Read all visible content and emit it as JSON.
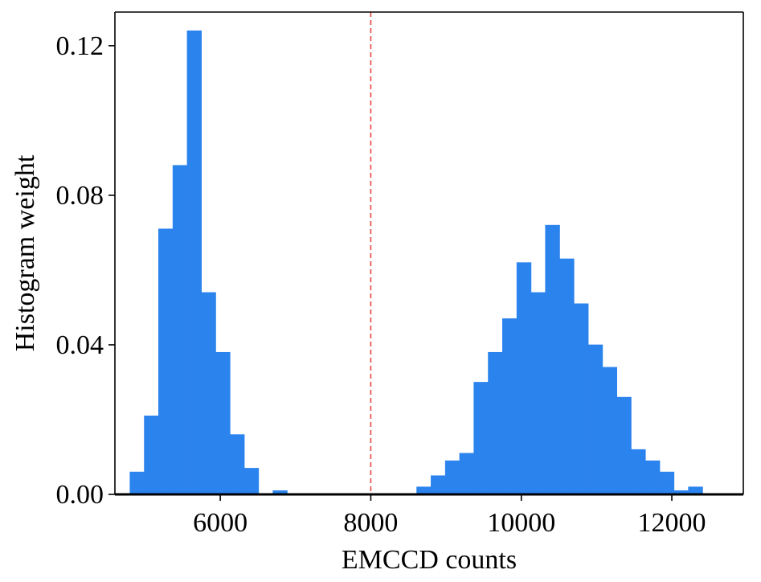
{
  "chart_data": {
    "type": "bar",
    "xlabel": "EMCCD counts",
    "ylabel": "Histogram weight",
    "xlim": [
      4600,
      12950
    ],
    "ylim": [
      0.0,
      0.129
    ],
    "xticks": [
      6000,
      8000,
      10000,
      12000
    ],
    "xtick_labels": [
      "6000",
      "8000",
      "10000",
      "12000"
    ],
    "yticks": [
      0.0,
      0.04,
      0.08,
      0.12
    ],
    "ytick_labels": [
      "0.00",
      "0.04",
      "0.08",
      "0.12"
    ],
    "bin_width": 190,
    "bins": [
      {
        "x0": 4800,
        "weight": 0.006
      },
      {
        "x0": 4990,
        "weight": 0.021
      },
      {
        "x0": 5180,
        "weight": 0.071
      },
      {
        "x0": 5370,
        "weight": 0.088
      },
      {
        "x0": 5560,
        "weight": 0.124
      },
      {
        "x0": 5750,
        "weight": 0.054
      },
      {
        "x0": 5940,
        "weight": 0.038
      },
      {
        "x0": 6130,
        "weight": 0.016
      },
      {
        "x0": 6320,
        "weight": 0.007
      },
      {
        "x0": 6700,
        "weight": 0.001
      },
      {
        "x0": 8610,
        "weight": 0.002
      },
      {
        "x0": 8800,
        "weight": 0.005
      },
      {
        "x0": 8990,
        "weight": 0.009
      },
      {
        "x0": 9180,
        "weight": 0.011
      },
      {
        "x0": 9370,
        "weight": 0.03
      },
      {
        "x0": 9560,
        "weight": 0.038
      },
      {
        "x0": 9750,
        "weight": 0.047
      },
      {
        "x0": 9940,
        "weight": 0.062
      },
      {
        "x0": 10130,
        "weight": 0.054
      },
      {
        "x0": 10320,
        "weight": 0.072
      },
      {
        "x0": 10510,
        "weight": 0.063
      },
      {
        "x0": 10700,
        "weight": 0.051
      },
      {
        "x0": 10890,
        "weight": 0.04
      },
      {
        "x0": 11080,
        "weight": 0.034
      },
      {
        "x0": 11270,
        "weight": 0.026
      },
      {
        "x0": 11460,
        "weight": 0.012
      },
      {
        "x0": 11650,
        "weight": 0.009
      },
      {
        "x0": 11840,
        "weight": 0.006
      },
      {
        "x0": 12030,
        "weight": 0.001
      },
      {
        "x0": 12220,
        "weight": 0.002
      }
    ],
    "threshold_x": 8000,
    "bar_color": "#2b83ee",
    "threshold_color": "#e8433b",
    "grid": false,
    "legend": "none"
  }
}
